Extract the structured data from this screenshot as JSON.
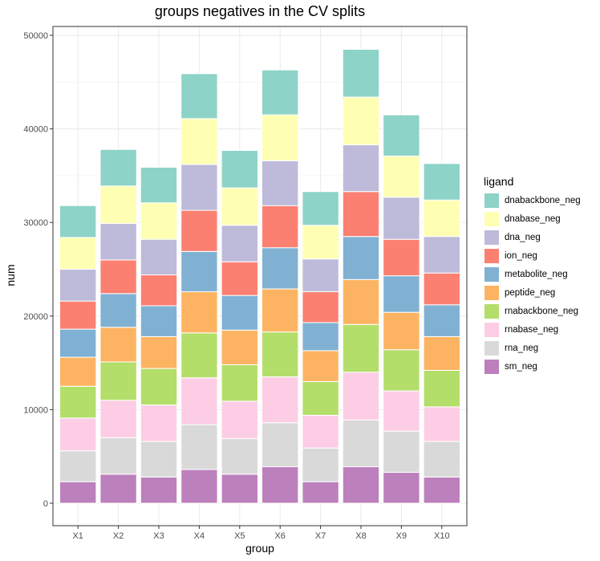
{
  "chart_data": {
    "type": "bar",
    "stacked": true,
    "title": "groups negatives in the CV splits",
    "xlabel": "group",
    "ylabel": "num",
    "ylim": [
      0,
      51500
    ],
    "yticks": [
      0,
      10000,
      20000,
      30000,
      40000,
      50000
    ],
    "grid": true,
    "legend_position": "right",
    "legend_title": "ligand",
    "categories": [
      "X1",
      "X2",
      "X3",
      "X4",
      "X5",
      "X6",
      "X7",
      "X8",
      "X9",
      "X10"
    ],
    "series": [
      {
        "name": "sm_neg",
        "color": "#bc80bd",
        "values": [
          2300,
          3100,
          2800,
          3600,
          3100,
          3900,
          2300,
          3900,
          3300,
          2800
        ]
      },
      {
        "name": "rna_neg",
        "color": "#d9d9d9",
        "values": [
          3300,
          3900,
          3800,
          4800,
          3800,
          4700,
          3600,
          5000,
          4400,
          3800
        ]
      },
      {
        "name": "rnabase_neg",
        "color": "#fccde5",
        "values": [
          3500,
          4000,
          3900,
          5000,
          4000,
          4900,
          3500,
          5100,
          4300,
          3700
        ]
      },
      {
        "name": "rnabackbone_neg",
        "color": "#b3de69",
        "values": [
          3400,
          4100,
          3900,
          4800,
          3900,
          4800,
          3600,
          5100,
          4400,
          3900
        ]
      },
      {
        "name": "peptide_neg",
        "color": "#fdb462",
        "values": [
          3100,
          3700,
          3400,
          4400,
          3700,
          4600,
          3300,
          4800,
          4000,
          3600
        ]
      },
      {
        "name": "metabolite_neg",
        "color": "#80b1d3",
        "values": [
          3000,
          3600,
          3300,
          4300,
          3700,
          4400,
          3000,
          4600,
          3900,
          3400
        ]
      },
      {
        "name": "ion_neg",
        "color": "#fb8072",
        "values": [
          3000,
          3600,
          3300,
          4400,
          3600,
          4500,
          3300,
          4800,
          3900,
          3400
        ]
      },
      {
        "name": "dna_neg",
        "color": "#bebada",
        "values": [
          3400,
          3900,
          3800,
          4900,
          3900,
          4800,
          3500,
          5000,
          4500,
          3900
        ]
      },
      {
        "name": "dnabase_neg",
        "color": "#ffffb3",
        "values": [
          3400,
          4000,
          3900,
          4900,
          4000,
          4900,
          3600,
          5100,
          4400,
          3900
        ]
      },
      {
        "name": "dnabackbone_neg",
        "color": "#8dd3c7",
        "values": [
          3400,
          3900,
          3800,
          4800,
          4000,
          4800,
          3600,
          5100,
          4400,
          3900
        ]
      }
    ]
  }
}
